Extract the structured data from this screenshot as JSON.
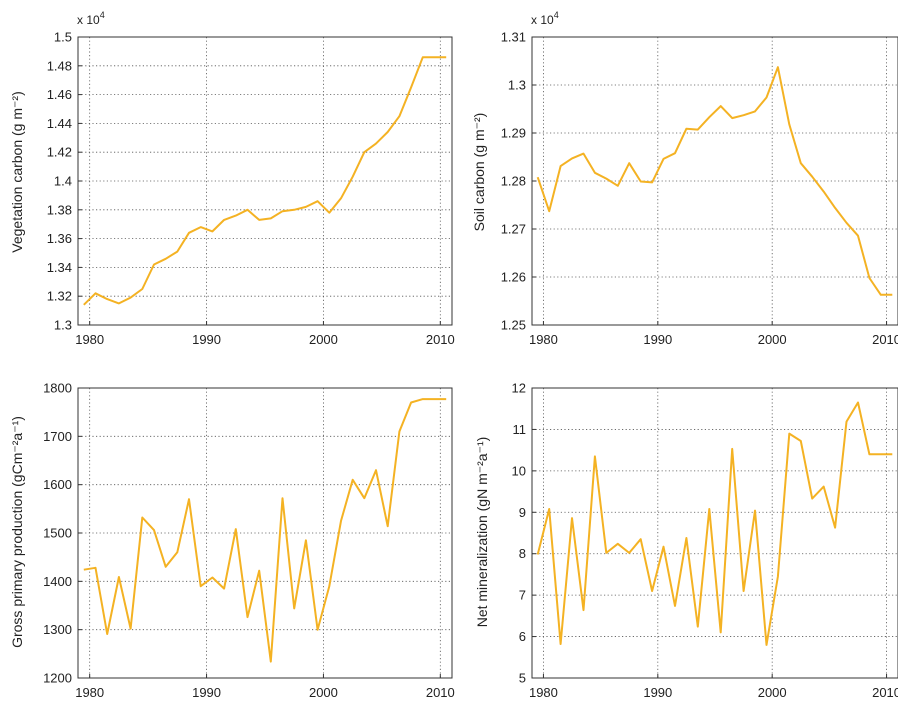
{
  "colors": {
    "line": "#F4B223",
    "frame": "#333333",
    "grid": "#555555",
    "text": "#222222"
  },
  "chart_data": [
    {
      "id": "vegetation",
      "type": "line",
      "ylabel": "Vegetation carbon (g m⁻²)",
      "multiplier": "x 10",
      "multiplier_exp": "4",
      "xlim": [
        1979,
        2011
      ],
      "ylim": [
        1.3,
        1.5
      ],
      "xticks": [
        1980,
        1990,
        2000,
        2010
      ],
      "yticks": [
        1.3,
        1.32,
        1.34,
        1.36,
        1.38,
        1.4,
        1.42,
        1.44,
        1.46,
        1.48,
        1.5
      ],
      "ytick_labels": [
        "1.3",
        "1.32",
        "1.34",
        "1.36",
        "1.38",
        "1.4",
        "1.42",
        "1.44",
        "1.46",
        "1.48",
        "1.5"
      ],
      "grid": "dotted",
      "x": [
        1979.5,
        1980.5,
        1981.5,
        1982.5,
        1983.5,
        1984.5,
        1985.5,
        1986.5,
        1987.5,
        1988.5,
        1989.5,
        1990.5,
        1991.5,
        1992.5,
        1993.5,
        1994.5,
        1995.5,
        1996.5,
        1997.5,
        1998.5,
        1999.5,
        2000.5,
        2001.5,
        2002.5,
        2003.5,
        2004.5,
        2005.5,
        2006.5,
        2007.5,
        2008.5,
        2009.5,
        2010.5
      ],
      "series": [
        {
          "values": [
            1.314,
            1.322,
            1.318,
            1.315,
            1.319,
            1.325,
            1.342,
            1.346,
            1.351,
            1.364,
            1.368,
            1.365,
            1.373,
            1.376,
            1.38,
            1.373,
            1.374,
            1.379,
            1.38,
            1.382,
            1.386,
            1.378,
            1.388,
            1.403,
            1.42,
            1.426,
            1.434,
            1.445,
            1.465,
            1.486,
            1.486,
            1.486
          ]
        }
      ]
    },
    {
      "id": "soil",
      "type": "line",
      "ylabel": "Soil carbon (g m⁻²)",
      "multiplier": "x 10",
      "multiplier_exp": "4",
      "xlim": [
        1979,
        2011
      ],
      "ylim": [
        1.25,
        1.31
      ],
      "xticks": [
        1980,
        1990,
        2000,
        2010
      ],
      "yticks": [
        1.25,
        1.26,
        1.27,
        1.28,
        1.29,
        1.3,
        1.31
      ],
      "ytick_labels": [
        "1.25",
        "1.26",
        "1.27",
        "1.28",
        "1.29",
        "1.3",
        "1.31"
      ],
      "grid": "dotted",
      "x": [
        1979.5,
        1980.5,
        1981.5,
        1982.5,
        1983.5,
        1984.5,
        1985.5,
        1986.5,
        1987.5,
        1988.5,
        1989.5,
        1990.5,
        1991.5,
        1992.5,
        1993.5,
        1994.5,
        1995.5,
        1996.5,
        1997.5,
        1998.5,
        1999.5,
        2000.5,
        2001.5,
        2002.5,
        2003.5,
        2004.5,
        2005.5,
        2006.5,
        2007.5,
        2008.5,
        2009.5,
        2010.5
      ],
      "series": [
        {
          "values": [
            1.2808,
            1.2737,
            1.2831,
            1.2847,
            1.2857,
            1.2817,
            1.2805,
            1.279,
            1.2837,
            1.2799,
            1.2797,
            1.2846,
            1.2858,
            1.2909,
            1.2907,
            1.2933,
            1.2956,
            1.2931,
            1.2937,
            1.2945,
            1.2974,
            1.3037,
            1.2918,
            1.2837,
            1.2809,
            1.2778,
            1.2744,
            1.2713,
            1.2686,
            1.2598,
            1.2563,
            1.2563
          ]
        }
      ]
    },
    {
      "id": "gpp",
      "type": "line",
      "ylabel": "Gross primary production (gCm⁻²a⁻¹)",
      "multiplier": "",
      "multiplier_exp": "",
      "xlim": [
        1979,
        2011
      ],
      "ylim": [
        1200,
        1800
      ],
      "xticks": [
        1980,
        1990,
        2000,
        2010
      ],
      "yticks": [
        1200,
        1300,
        1400,
        1500,
        1600,
        1700,
        1800
      ],
      "ytick_labels": [
        "1200",
        "1300",
        "1400",
        "1500",
        "1600",
        "1700",
        "1800"
      ],
      "grid": "dotted",
      "x": [
        1979.5,
        1980.5,
        1981.5,
        1982.5,
        1983.5,
        1984.5,
        1985.5,
        1986.5,
        1987.5,
        1988.5,
        1989.5,
        1990.5,
        1991.5,
        1992.5,
        1993.5,
        1994.5,
        1995.5,
        1996.5,
        1997.5,
        1998.5,
        1999.5,
        2000.5,
        2001.5,
        2002.5,
        2003.5,
        2004.5,
        2005.5,
        2006.5,
        2007.5,
        2008.5,
        2009.5,
        2010.5
      ],
      "series": [
        {
          "values": [
            1424,
            1428,
            1291,
            1409,
            1302,
            1532,
            1506,
            1430,
            1460,
            1570,
            1390,
            1408,
            1385,
            1508,
            1326,
            1422,
            1234,
            1572,
            1344,
            1485,
            1300,
            1390,
            1525,
            1610,
            1572,
            1630,
            1514,
            1710,
            1770,
            1777,
            1777,
            1777
          ]
        }
      ]
    },
    {
      "id": "nmin",
      "type": "line",
      "ylabel": "Net mineralization (gN m⁻²a⁻¹)",
      "multiplier": "",
      "multiplier_exp": "",
      "xlim": [
        1979,
        2011
      ],
      "ylim": [
        5,
        12
      ],
      "xticks": [
        1980,
        1990,
        2000,
        2010
      ],
      "yticks": [
        5,
        6,
        7,
        8,
        9,
        10,
        11,
        12
      ],
      "ytick_labels": [
        "5",
        "6",
        "7",
        "8",
        "9",
        "10",
        "11",
        "12"
      ],
      "grid": "dotted",
      "x": [
        1979.5,
        1980.5,
        1981.5,
        1982.5,
        1983.5,
        1984.5,
        1985.5,
        1986.5,
        1987.5,
        1988.5,
        1989.5,
        1990.5,
        1991.5,
        1992.5,
        1993.5,
        1994.5,
        1995.5,
        1996.5,
        1997.5,
        1998.5,
        1999.5,
        2000.5,
        2001.5,
        2002.5,
        2003.5,
        2004.5,
        2005.5,
        2006.5,
        2007.5,
        2008.5,
        2009.5,
        2010.5
      ],
      "series": [
        {
          "values": [
            7.98,
            9.08,
            5.82,
            8.86,
            6.64,
            10.35,
            8.02,
            8.24,
            8.02,
            8.35,
            7.1,
            8.17,
            6.74,
            8.38,
            6.24,
            9.08,
            6.1,
            10.53,
            7.1,
            9.04,
            5.8,
            7.45,
            10.9,
            10.72,
            9.33,
            9.62,
            8.63,
            11.19,
            11.65,
            10.4,
            10.4,
            10.4
          ]
        }
      ]
    }
  ]
}
